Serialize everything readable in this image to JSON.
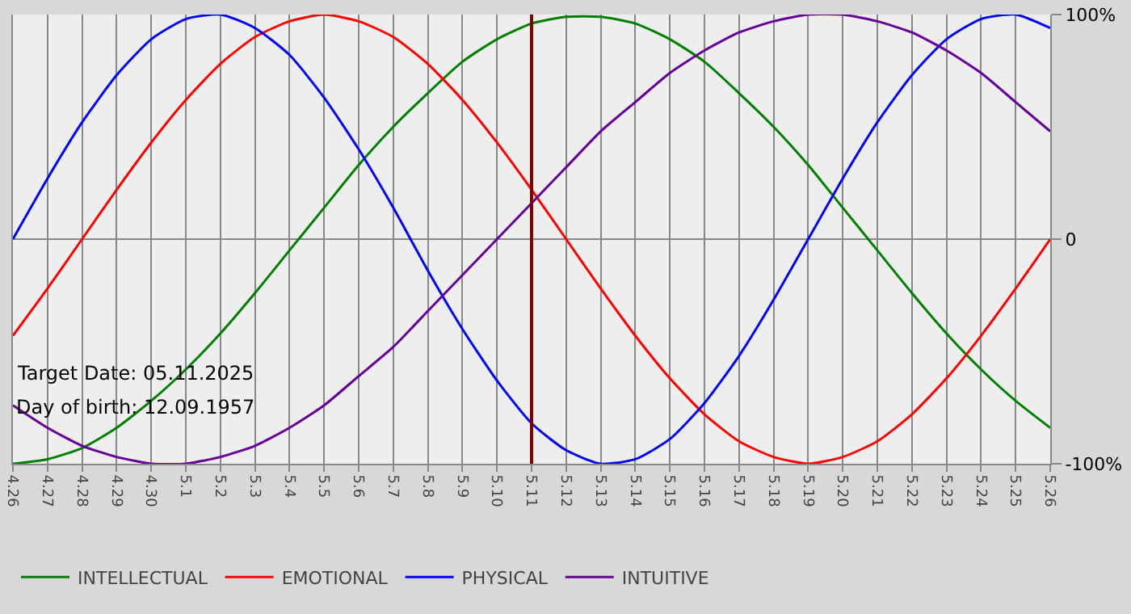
{
  "chart_data": {
    "type": "line",
    "categories": [
      "4.26",
      "4.27",
      "4.28",
      "4.29",
      "4.30",
      "5.1",
      "5.2",
      "5.3",
      "5.4",
      "5.5",
      "5.6",
      "5.7",
      "5.8",
      "5.9",
      "5.10",
      "5.11",
      "5.12",
      "5.13",
      "5.14",
      "5.15",
      "5.16",
      "5.17",
      "5.18",
      "5.19",
      "5.20",
      "5.21",
      "5.22",
      "5.23",
      "5.24",
      "5.25",
      "5.26"
    ],
    "series": [
      {
        "name": "INTELLECTUAL",
        "color": "#008000",
        "values": [
          -100,
          -98,
          -93,
          -84,
          -72,
          -58,
          -42,
          -24,
          -5,
          14,
          33,
          50,
          65,
          79,
          89,
          96,
          99,
          99,
          96,
          89,
          79,
          65,
          50,
          33,
          14,
          -5,
          -24,
          -42,
          -58,
          -72,
          -84
        ]
      },
      {
        "name": "EMOTIONAL",
        "color": "#ff0000",
        "values": [
          -43,
          -22,
          0,
          22,
          43,
          62,
          78,
          90,
          97,
          100,
          97,
          90,
          78,
          62,
          43,
          22,
          0,
          -22,
          -43,
          -62,
          -78,
          -90,
          -97,
          -100,
          -97,
          -90,
          -78,
          -62,
          -43,
          -22,
          0
        ]
      },
      {
        "name": "PHYSICAL",
        "color": "#0000ff",
        "values": [
          0,
          27,
          52,
          73,
          89,
          98,
          100,
          94,
          82,
          63,
          40,
          14,
          -14,
          -40,
          -63,
          -82,
          -94,
          -100,
          -98,
          -89,
          -73,
          -52,
          -27,
          0,
          27,
          52,
          73,
          89,
          98,
          100,
          94
        ]
      },
      {
        "name": "INTUITIVE",
        "color": "#660099",
        "values": [
          -74,
          -84,
          -92,
          -97,
          -100,
          -100,
          -97,
          -92,
          -84,
          -74,
          -61,
          -48,
          -32,
          -16,
          0,
          16,
          32,
          48,
          61,
          74,
          84,
          92,
          97,
          100,
          100,
          97,
          92,
          84,
          74,
          61,
          48
        ]
      }
    ],
    "ylim": [
      -100,
      100
    ],
    "yticks": [
      {
        "value": 100,
        "label": "100%"
      },
      0,
      {
        "value": -100,
        "label": "-100%"
      }
    ],
    "ref_lines": [
      {
        "axis": "x",
        "value": "5.11",
        "color": "#800000"
      }
    ],
    "annotations": [
      "Target Date: 05.11.2025",
      "Day of birth: 12.09.1957"
    ],
    "grid": true,
    "legend": "bottom left",
    "marker": "none",
    "line_style": "solid"
  }
}
